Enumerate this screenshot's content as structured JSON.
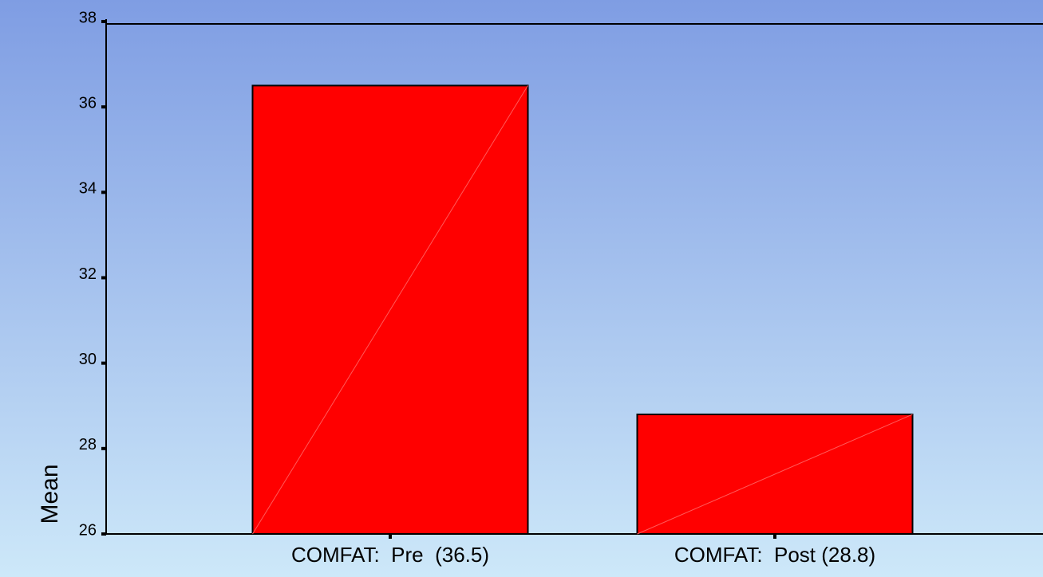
{
  "chart_data": {
    "type": "bar",
    "y_label": "Mean",
    "categories": [
      "COMFAT:  Pre  (36.5)",
      "COMFAT:  Post (28.8)"
    ],
    "values": [
      36.5,
      28.8
    ],
    "color": "#ff0000",
    "ylim": [
      26,
      38
    ],
    "yticks": [
      26,
      28,
      30,
      32,
      34,
      36,
      38
    ],
    "grid": false
  }
}
